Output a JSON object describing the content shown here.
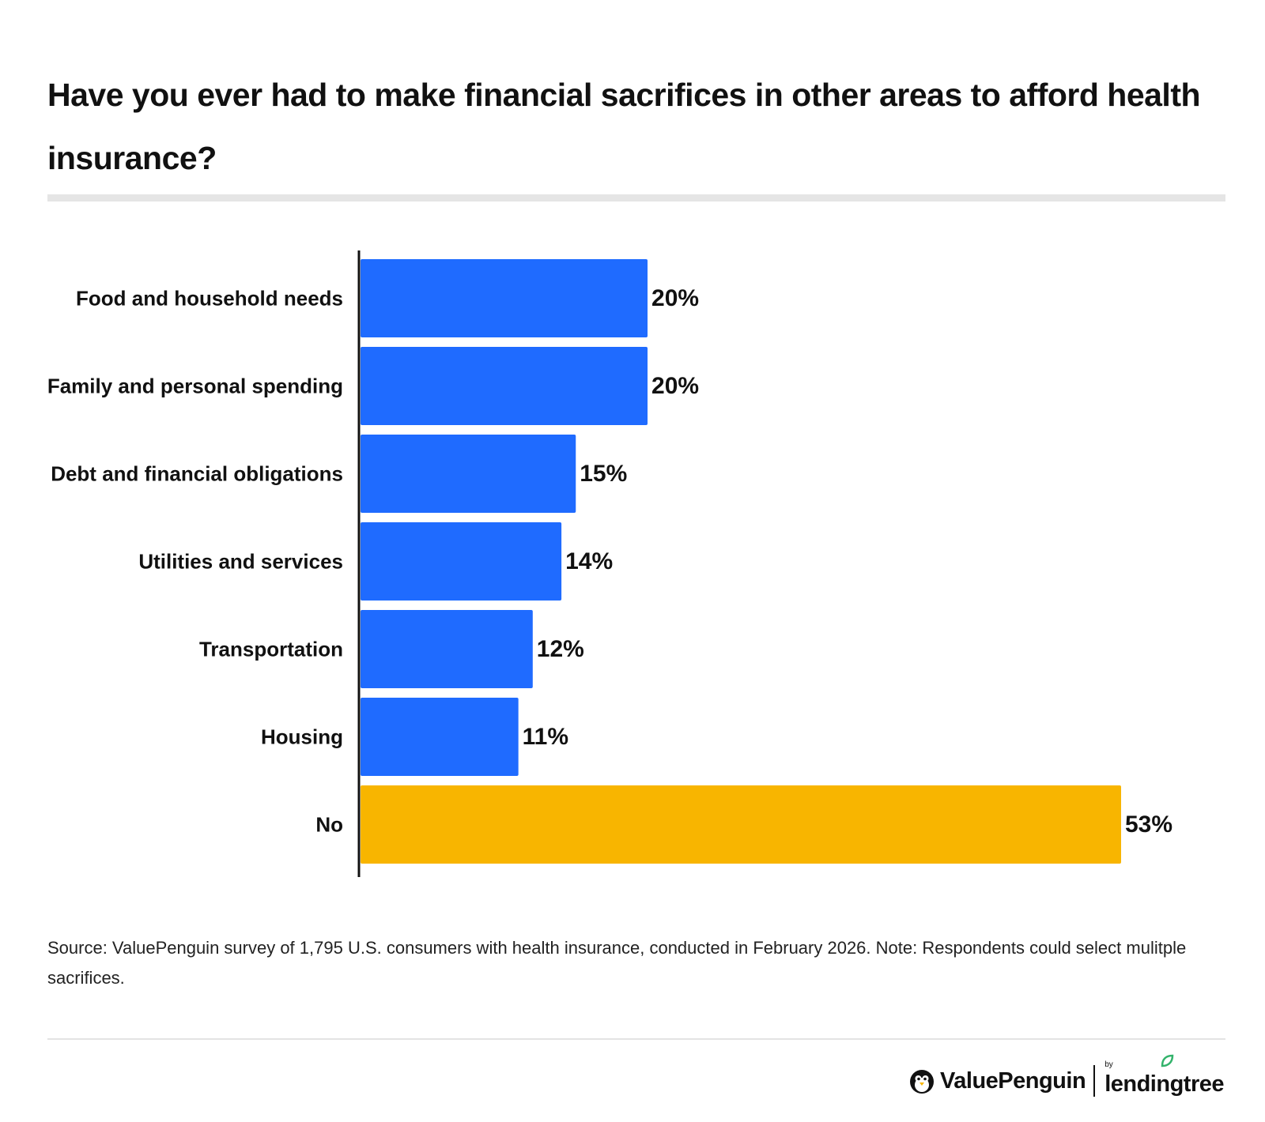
{
  "title": "Have you ever had to make financial sacrifices in other areas to afford health insurance?",
  "chart_data": {
    "type": "bar",
    "orientation": "horizontal",
    "categories": [
      "Food and household needs",
      "Family and personal spending",
      "Debt and financial obligations",
      "Utilities and services",
      "Transportation",
      "Housing",
      "No"
    ],
    "values": [
      20,
      20,
      15,
      14,
      12,
      11,
      53
    ],
    "value_labels": [
      "20%",
      "20%",
      "15%",
      "14%",
      "12%",
      "11%",
      "53%"
    ],
    "unit": "%",
    "xlim": [
      0,
      53
    ],
    "colors": [
      "#1f6bff",
      "#1f6bff",
      "#1f6bff",
      "#1f6bff",
      "#1f6bff",
      "#1f6bff",
      "#f8b500"
    ],
    "grid": false,
    "legend": "none"
  },
  "footnote": "Source: ValuePenguin survey of 1,795 U.S. consumers with health insurance, conducted in February 2026. Note: Respondents could select mulitple sacrifices.",
  "brand": {
    "primary": "ValuePenguin",
    "by": "by",
    "secondary": "lendingtree"
  },
  "colors": {
    "bar_blue": "#1f6bff",
    "bar_highlight": "#f8b500",
    "leaf_green": "#33b36b"
  }
}
